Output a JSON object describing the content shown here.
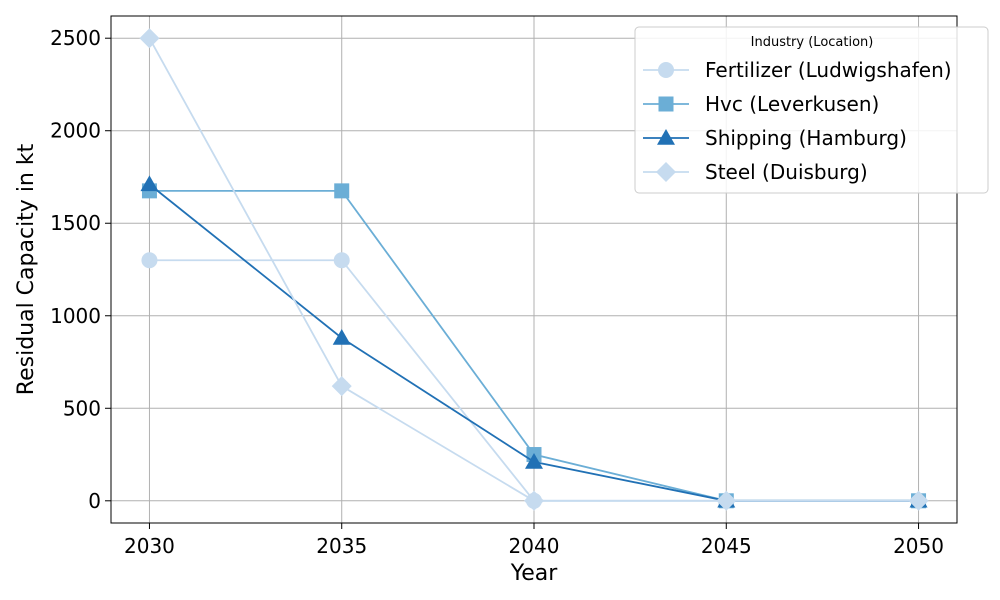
{
  "chart_data": {
    "type": "line",
    "title": "",
    "xlabel": "Year",
    "ylabel": "Residual Capacity in kt",
    "x": [
      2030,
      2035,
      2040,
      2045,
      2050
    ],
    "x_ticks": [
      "2030",
      "2035",
      "2040",
      "2045",
      "2050"
    ],
    "y_ticks": [
      "0",
      "500",
      "1000",
      "1500",
      "2000",
      "2500"
    ],
    "xlim": [
      2029,
      2051
    ],
    "ylim": [
      -120,
      2620
    ],
    "grid": true,
    "legend": {
      "title": "Industry (Location)",
      "placement": "top-right"
    },
    "series": [
      {
        "name": "Fertilizer (Ludwigshafen)",
        "marker": "circle",
        "color": "#c6dbef",
        "values": [
          1300,
          1300,
          0,
          0,
          0
        ]
      },
      {
        "name": "Hvc (Leverkusen)",
        "marker": "square",
        "color": "#6baed6",
        "values": [
          1675,
          1675,
          250,
          0,
          0
        ]
      },
      {
        "name": "Shipping (Hamburg)",
        "marker": "triangle",
        "color": "#2171b5",
        "values": [
          1710,
          880,
          210,
          0,
          0
        ]
      },
      {
        "name": "Steel (Duisburg)",
        "marker": "diamond",
        "color": "#c6dbef",
        "values": [
          2500,
          620,
          0,
          0,
          0
        ]
      }
    ]
  }
}
